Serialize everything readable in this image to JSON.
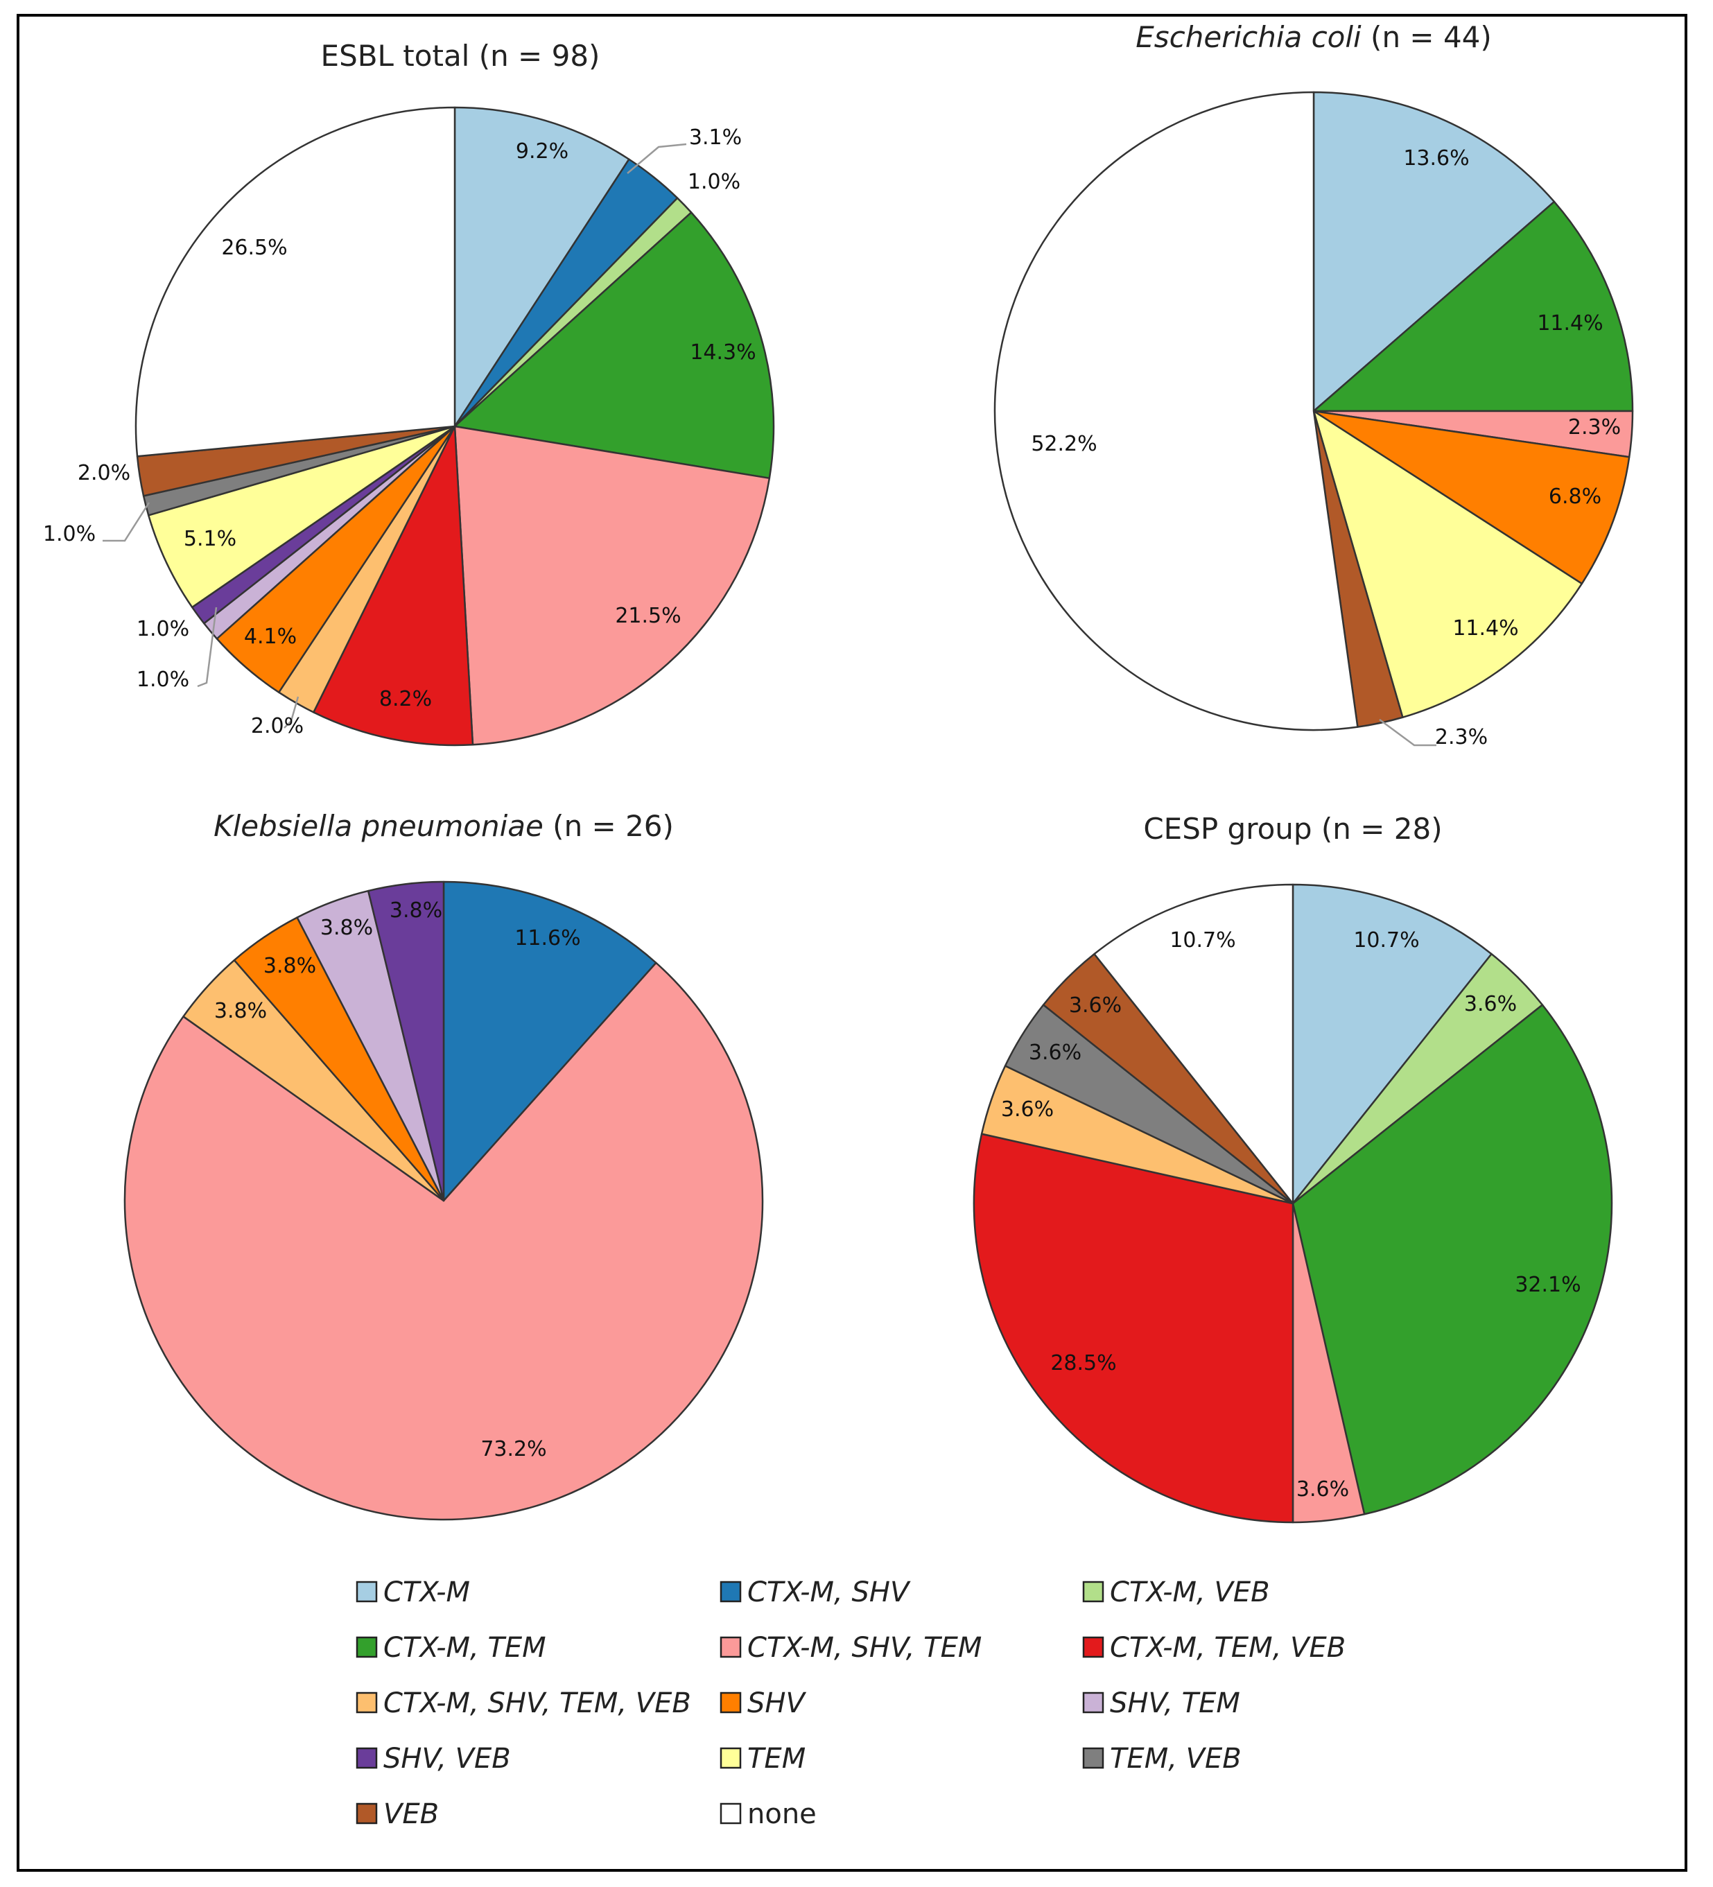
{
  "category_colors": {
    "CTX-M": "#a6cee3",
    "CTX-M, SHV": "#1f78b4",
    "CTX-M, VEB": "#b2df8a",
    "CTX-M, TEM": "#33a02c",
    "CTX-M, SHV, TEM": "#fb9a99",
    "CTX-M, TEM, VEB": "#e31a1c",
    "CTX-M, SHV, TEM, VEB": "#fdbf6f",
    "SHV": "#ff7f00",
    "SHV, TEM": "#cab2d6",
    "SHV, VEB": "#6a3d9a",
    "TEM": "#ffff99",
    "TEM, VEB": "#7f7f7f",
    "VEB": "#b15928",
    "none": "#ffffff"
  },
  "legend": {
    "items": [
      {
        "label": "CTX-M",
        "italic": true
      },
      {
        "label": "CTX-M, SHV",
        "italic": true
      },
      {
        "label": "CTX-M, VEB",
        "italic": true
      },
      {
        "label": "CTX-M, TEM",
        "italic": true
      },
      {
        "label": "CTX-M, SHV, TEM",
        "italic": true
      },
      {
        "label": "CTX-M, TEM, VEB",
        "italic": true
      },
      {
        "label": "CTX-M, SHV, TEM, VEB",
        "italic": true
      },
      {
        "label": "SHV",
        "italic": true
      },
      {
        "label": "SHV, TEM",
        "italic": true
      },
      {
        "label": "SHV, VEB",
        "italic": true
      },
      {
        "label": "TEM",
        "italic": true
      },
      {
        "label": "TEM, VEB",
        "italic": true
      },
      {
        "label": "VEB",
        "italic": true
      },
      {
        "label": "none",
        "italic": false
      }
    ]
  },
  "chart_data": [
    {
      "type": "pie",
      "title": "ESBL total (n = 98)",
      "title_parts": [
        {
          "text": "ESBL total (n = 98)",
          "italic": false
        }
      ],
      "slices": [
        {
          "category": "CTX-M",
          "value": 9.2,
          "label": "9.2%"
        },
        {
          "category": "CTX-M, SHV",
          "value": 3.1,
          "label": "3.1%"
        },
        {
          "category": "CTX-M, VEB",
          "value": 1.0,
          "label": "1.0%"
        },
        {
          "category": "CTX-M, TEM",
          "value": 14.3,
          "label": "14.3%"
        },
        {
          "category": "CTX-M, SHV, TEM",
          "value": 21.5,
          "label": "21.5%"
        },
        {
          "category": "CTX-M, TEM, VEB",
          "value": 8.2,
          "label": "8.2%"
        },
        {
          "category": "CTX-M, SHV, TEM, VEB",
          "value": 2.0,
          "label": "2.0%"
        },
        {
          "category": "SHV",
          "value": 4.1,
          "label": "4.1%"
        },
        {
          "category": "SHV, TEM",
          "value": 1.0,
          "label": "1.0%"
        },
        {
          "category": "SHV, VEB",
          "value": 1.0,
          "label": "1.0%"
        },
        {
          "category": "TEM",
          "value": 5.1,
          "label": "5.1%"
        },
        {
          "category": "TEM, VEB",
          "value": 1.0,
          "label": "1.0%"
        },
        {
          "category": "VEB",
          "value": 2.0,
          "label": "2.0%"
        },
        {
          "category": "none",
          "value": 26.5,
          "label": "26.5%"
        }
      ]
    },
    {
      "type": "pie",
      "title": "Escherichia coli (n = 44)",
      "title_parts": [
        {
          "text": "Escherichia coli",
          "italic": true
        },
        {
          "text": " (n = 44)",
          "italic": false
        }
      ],
      "slices": [
        {
          "category": "CTX-M",
          "value": 13.6,
          "label": "13.6%"
        },
        {
          "category": "CTX-M, TEM",
          "value": 11.4,
          "label": "11.4%"
        },
        {
          "category": "CTX-M, SHV, TEM",
          "value": 2.3,
          "label": "2.3%"
        },
        {
          "category": "SHV",
          "value": 6.8,
          "label": "6.8%"
        },
        {
          "category": "TEM",
          "value": 11.4,
          "label": "11.4%"
        },
        {
          "category": "VEB",
          "value": 2.3,
          "label": "2.3%"
        },
        {
          "category": "none",
          "value": 52.2,
          "label": "52.2%"
        }
      ]
    },
    {
      "type": "pie",
      "title": "Klebsiella pneumoniae (n = 26)",
      "title_parts": [
        {
          "text": "Klebsiella pneumoniae",
          "italic": true
        },
        {
          "text": " (n = 26)",
          "italic": false
        }
      ],
      "slices": [
        {
          "category": "CTX-M, SHV",
          "value": 11.6,
          "label": "11.6%"
        },
        {
          "category": "CTX-M, SHV, TEM",
          "value": 73.2,
          "label": "73.2%"
        },
        {
          "category": "CTX-M, SHV, TEM, VEB",
          "value": 3.8,
          "label": "3.8%"
        },
        {
          "category": "SHV",
          "value": 3.8,
          "label": "3.8%"
        },
        {
          "category": "SHV, TEM",
          "value": 3.8,
          "label": "3.8%"
        },
        {
          "category": "SHV, VEB",
          "value": 3.8,
          "label": "3.8%"
        }
      ]
    },
    {
      "type": "pie",
      "title": "CESP group (n = 28)",
      "title_parts": [
        {
          "text": "CESP group (n = 28)",
          "italic": false
        }
      ],
      "slices": [
        {
          "category": "CTX-M",
          "value": 10.7,
          "label": "10.7%"
        },
        {
          "category": "CTX-M, VEB",
          "value": 3.6,
          "label": "3.6%"
        },
        {
          "category": "CTX-M, TEM",
          "value": 32.1,
          "label": "32.1%"
        },
        {
          "category": "CTX-M, SHV, TEM",
          "value": 3.6,
          "label": "3.6%"
        },
        {
          "category": "CTX-M, TEM, VEB",
          "value": 28.5,
          "label": "28.5%"
        },
        {
          "category": "CTX-M, SHV, TEM, VEB",
          "value": 3.6,
          "label": "3.6%"
        },
        {
          "category": "TEM, VEB",
          "value": 3.6,
          "label": "3.6%"
        },
        {
          "category": "VEB",
          "value": 3.6,
          "label": "3.6%"
        },
        {
          "category": "none",
          "value": 10.7,
          "label": "10.7%"
        }
      ]
    }
  ]
}
